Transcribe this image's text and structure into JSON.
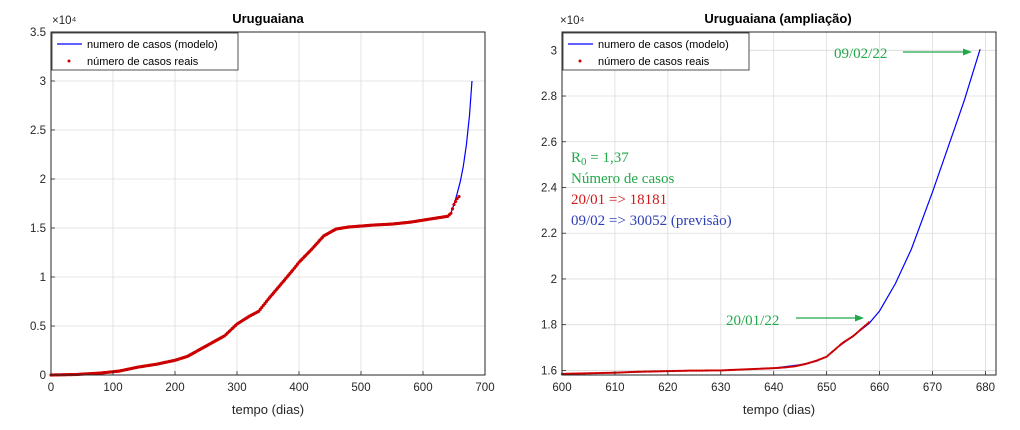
{
  "colors": {
    "model": "#0000ff",
    "real": "#cc0000",
    "annotation_green": "#22a84a",
    "annotation_red": "#d01818",
    "annotation_blue": "#2f3fb8",
    "grid": "#dcdcdc"
  },
  "chart_data": [
    {
      "type": "line",
      "title": "Uruguaiana",
      "xlabel": "tempo (dias)",
      "ylabel": "",
      "y_exponent": "×10⁴",
      "xlim": [
        0,
        700
      ],
      "ylim": [
        0,
        3.5
      ],
      "xticks": [
        "0",
        "100",
        "200",
        "300",
        "400",
        "500",
        "600",
        "700"
      ],
      "yticks": [
        "0",
        "0.5",
        "1",
        "1.5",
        "2",
        "2.5",
        "3",
        "3.5"
      ],
      "grid": true,
      "legend": "top-left",
      "legend_entries": [
        "numero de casos (modelo)",
        "número de casos reais"
      ],
      "series": [
        {
          "name": "numero de casos (modelo)",
          "style": "line",
          "x": [
            0,
            40,
            80,
            110,
            140,
            170,
            200,
            220,
            240,
            260,
            280,
            290,
            300,
            320,
            335,
            350,
            370,
            390,
            400,
            420,
            440,
            460,
            480,
            500,
            520,
            550,
            580,
            610,
            630,
            640,
            645,
            650,
            655,
            660,
            665,
            670,
            675,
            679
          ],
          "y": [
            0.0,
            0.005,
            0.02,
            0.04,
            0.08,
            0.11,
            0.15,
            0.19,
            0.26,
            0.33,
            0.4,
            0.46,
            0.52,
            0.6,
            0.65,
            0.77,
            0.92,
            1.07,
            1.15,
            1.28,
            1.42,
            1.49,
            1.51,
            1.52,
            1.53,
            1.54,
            1.56,
            1.59,
            1.61,
            1.62,
            1.65,
            1.74,
            1.85,
            1.97,
            2.13,
            2.35,
            2.65,
            3.0
          ]
        },
        {
          "name": "número de casos reais",
          "style": "dots",
          "x": [
            0,
            40,
            80,
            110,
            140,
            170,
            200,
            220,
            240,
            260,
            280,
            290,
            300,
            320,
            335,
            350,
            370,
            390,
            400,
            420,
            440,
            460,
            480,
            500,
            520,
            550,
            580,
            610,
            630,
            640,
            645,
            650,
            655,
            658
          ],
          "y": [
            0.0,
            0.005,
            0.02,
            0.04,
            0.08,
            0.11,
            0.15,
            0.19,
            0.26,
            0.33,
            0.4,
            0.46,
            0.52,
            0.6,
            0.65,
            0.77,
            0.92,
            1.07,
            1.15,
            1.28,
            1.42,
            1.49,
            1.51,
            1.52,
            1.53,
            1.54,
            1.56,
            1.59,
            1.61,
            1.62,
            1.65,
            1.74,
            1.8,
            1.82
          ]
        }
      ]
    },
    {
      "type": "line",
      "title": "Uruguaiana (ampliação)",
      "xlabel": "tempo (dias)",
      "ylabel": "",
      "y_exponent": "×10⁴",
      "xlim": [
        600,
        682
      ],
      "ylim": [
        1.58,
        3.08
      ],
      "xticks": [
        "600",
        "610",
        "620",
        "630",
        "640",
        "650",
        "660",
        "670",
        "680"
      ],
      "yticks": [
        "1.6",
        "1.8",
        "2",
        "2.2",
        "2.4",
        "2.6",
        "2.8",
        "3"
      ],
      "grid": true,
      "legend": "top-left",
      "legend_entries": [
        "numero de casos (modelo)",
        "número de casos reais"
      ],
      "series": [
        {
          "name": "numero de casos (modelo)",
          "style": "line",
          "x": [
            600,
            610,
            620,
            630,
            640,
            645,
            648,
            650,
            652,
            655,
            658,
            660,
            663,
            666,
            670,
            673,
            676,
            679
          ],
          "y": [
            1.585,
            1.59,
            1.597,
            1.6,
            1.61,
            1.625,
            1.64,
            1.66,
            1.7,
            1.75,
            1.805,
            1.86,
            1.98,
            2.13,
            2.38,
            2.58,
            2.78,
            3.005
          ]
        },
        {
          "name": "número de casos reais",
          "style": "dots",
          "x": [
            600,
            602,
            604,
            606,
            608,
            610,
            612,
            614,
            616,
            618,
            620,
            622,
            624,
            626,
            628,
            630,
            632,
            634,
            636,
            638,
            640,
            642,
            644,
            646,
            648,
            650,
            651,
            652,
            653,
            654,
            655,
            656,
            657,
            658
          ],
          "y": [
            1.585,
            1.586,
            1.587,
            1.588,
            1.589,
            1.59,
            1.592,
            1.594,
            1.595,
            1.596,
            1.597,
            1.598,
            1.599,
            1.599,
            1.6,
            1.6,
            1.602,
            1.604,
            1.606,
            1.608,
            1.61,
            1.613,
            1.618,
            1.628,
            1.642,
            1.66,
            1.68,
            1.7,
            1.72,
            1.735,
            1.75,
            1.77,
            1.79,
            1.81
          ]
        }
      ],
      "annotations": {
        "arrow_top_label": "09/02/22",
        "arrow_bottom_label": "20/01/22",
        "r0_label": "R",
        "r0_sub": "0",
        "r0_value": " = 1,37",
        "cases_heading": "Número de casos",
        "line_real": "20/01 => 18181",
        "line_forecast": "09/02 => 30052 (previsão)"
      }
    }
  ]
}
